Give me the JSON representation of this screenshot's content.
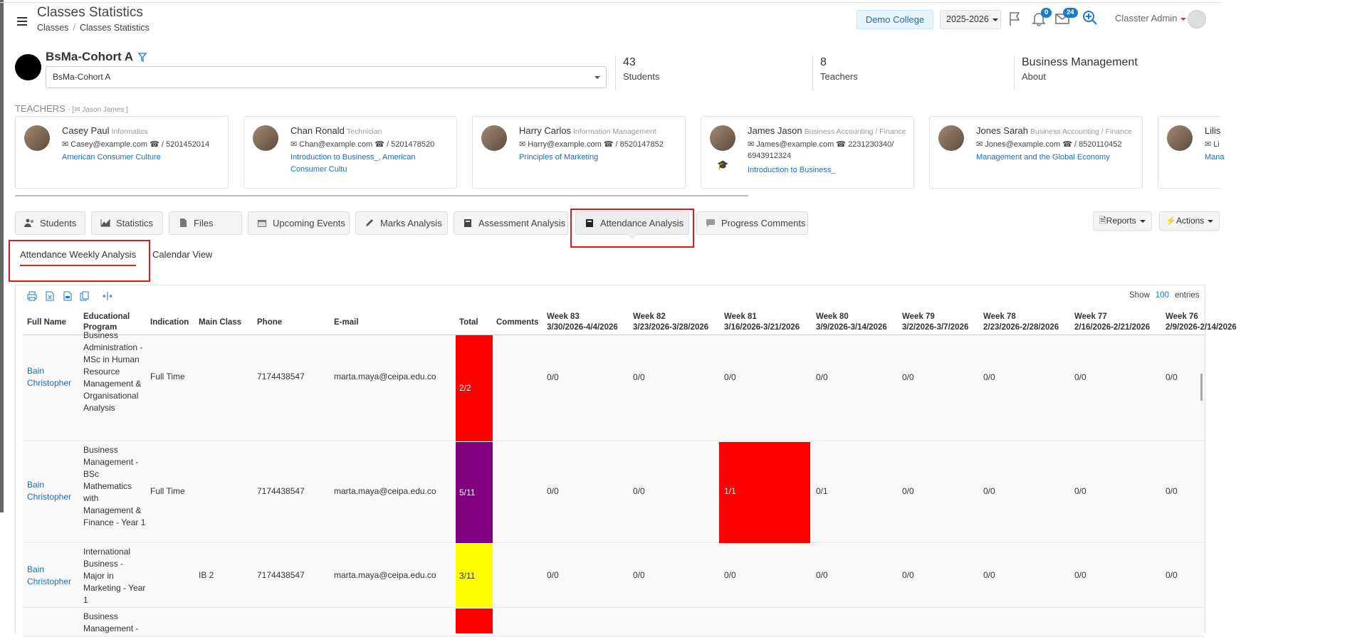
{
  "header": {
    "title": "Classes Statistics",
    "breadcrumb": [
      "Classes",
      "Classes Statistics"
    ],
    "college": "Demo College",
    "year": "2025-2026",
    "notifications_count": "0",
    "messages_count": "24",
    "user": "Classter Admin"
  },
  "cohort": {
    "name": "BsMa-Cohort A",
    "selected": "BsMa-Cohort A",
    "stats": [
      {
        "value": "43",
        "label": "Students"
      },
      {
        "value": "8",
        "label": "Teachers"
      },
      {
        "value": "Business Management",
        "label": "About"
      }
    ]
  },
  "teachers": {
    "heading": "TEACHERS",
    "sub": "- [✉ Jason James ]",
    "cards": [
      {
        "name": "Casey Paul",
        "dept": "Informatics",
        "contact": "✉ Casey@example.com ☎ / 5201452014",
        "courses": "American Consumer Culture"
      },
      {
        "name": "Chan Ronald",
        "dept": "Technician",
        "contact": "✉ Chan@example.com ☎ / 5201478520",
        "courses": "Introduction to Business_, American Consumer Cultu"
      },
      {
        "name": "Harry Carlos",
        "dept": "Information Management",
        "contact": "✉ Harry@example.com ☎ / 8520147852",
        "courses": "Principles of Marketing"
      },
      {
        "name": "James Jason",
        "dept": "Business Accounting / Finance",
        "contact": "✉ James@example.com ☎ 2231230340/ 6943912324",
        "courses": "Introduction to Business_"
      },
      {
        "name": "Jones Sarah",
        "dept": "Business Accounting / Finance",
        "contact": "✉ Jones@example.com ☎ / 8520110452",
        "courses": "Management and the Global Economy"
      },
      {
        "name": "Lilis",
        "dept": "",
        "contact": "✉ Li",
        "courses": "Mana"
      }
    ]
  },
  "tabs": [
    "Students",
    "Statistics",
    "Files",
    "Upcoming Events",
    "Marks Analysis",
    "Assessment Analysis",
    "Attendance Analysis",
    "Progress Comments"
  ],
  "buttons": {
    "reports": "Reports",
    "actions": "Actions"
  },
  "subtabs": [
    "Attendance Weekly Analysis",
    "Calendar View"
  ],
  "table": {
    "show_label": "Show",
    "entries_value": "100",
    "entries_label": "entries",
    "columns": [
      "Full Name",
      "Educational Program",
      "Indication",
      "Main Class",
      "Phone",
      "E-mail",
      "Total",
      "Comments"
    ],
    "weeks": [
      {
        "label": "Week 83",
        "range": "3/30/2026-4/4/2026"
      },
      {
        "label": "Week 82",
        "range": "3/23/2026-3/28/2026"
      },
      {
        "label": "Week 81",
        "range": "3/16/2026-3/21/2026"
      },
      {
        "label": "Week 80",
        "range": "3/9/2026-3/14/2026"
      },
      {
        "label": "Week 79",
        "range": "3/2/2026-3/7/2026"
      },
      {
        "label": "Week 78",
        "range": "2/23/2026-2/28/2026"
      },
      {
        "label": "Week 77",
        "range": "2/16/2026-2/21/2026"
      },
      {
        "label": "Week 76",
        "range": "2/9/2026-2/14/2026"
      }
    ],
    "rows": [
      {
        "name": "Bain Christopher",
        "program": "Business Administration - MSc in Human Resource Management & Organisational Analysis",
        "indication": "Full Time",
        "main_class": "",
        "phone": "7174438547",
        "email": "marta.maya@ceipa.edu.co",
        "total": "2/2",
        "total_color": "#ff0000",
        "weeks": [
          "0/0",
          "0/0",
          "0/0",
          "0/0",
          "0/0",
          "0/0",
          "0/0",
          "0/0"
        ]
      },
      {
        "name": "Bain Christopher",
        "program": "Business Management - BSc Mathematics with Management & Finance  - Year 1",
        "indication": "Full Time",
        "main_class": "",
        "phone": "7174438547",
        "email": "marta.maya@ceipa.edu.co",
        "total": "5/11",
        "total_color": "#800080",
        "weeks": [
          "0/0",
          "0/0",
          "1/1",
          "0/1",
          "0/0",
          "0/0",
          "0/0",
          "0/0"
        ]
      },
      {
        "name": "Bain Christopher",
        "program": "International Business - Major in Marketing - Year 1",
        "indication": "",
        "main_class": "IB 2",
        "phone": "7174438547",
        "email": "marta.maya@ceipa.edu.co",
        "total": "3/11",
        "total_color": "#ffff00",
        "weeks": [
          "0/0",
          "0/0",
          "0/0",
          "0/0",
          "0/0",
          "0/0",
          "0/0",
          "0/0"
        ]
      },
      {
        "name": "",
        "program": "Business Management -",
        "indication": "",
        "main_class": "",
        "phone": "",
        "email": "",
        "total": "",
        "total_color": "#ff0000",
        "weeks": []
      }
    ]
  }
}
